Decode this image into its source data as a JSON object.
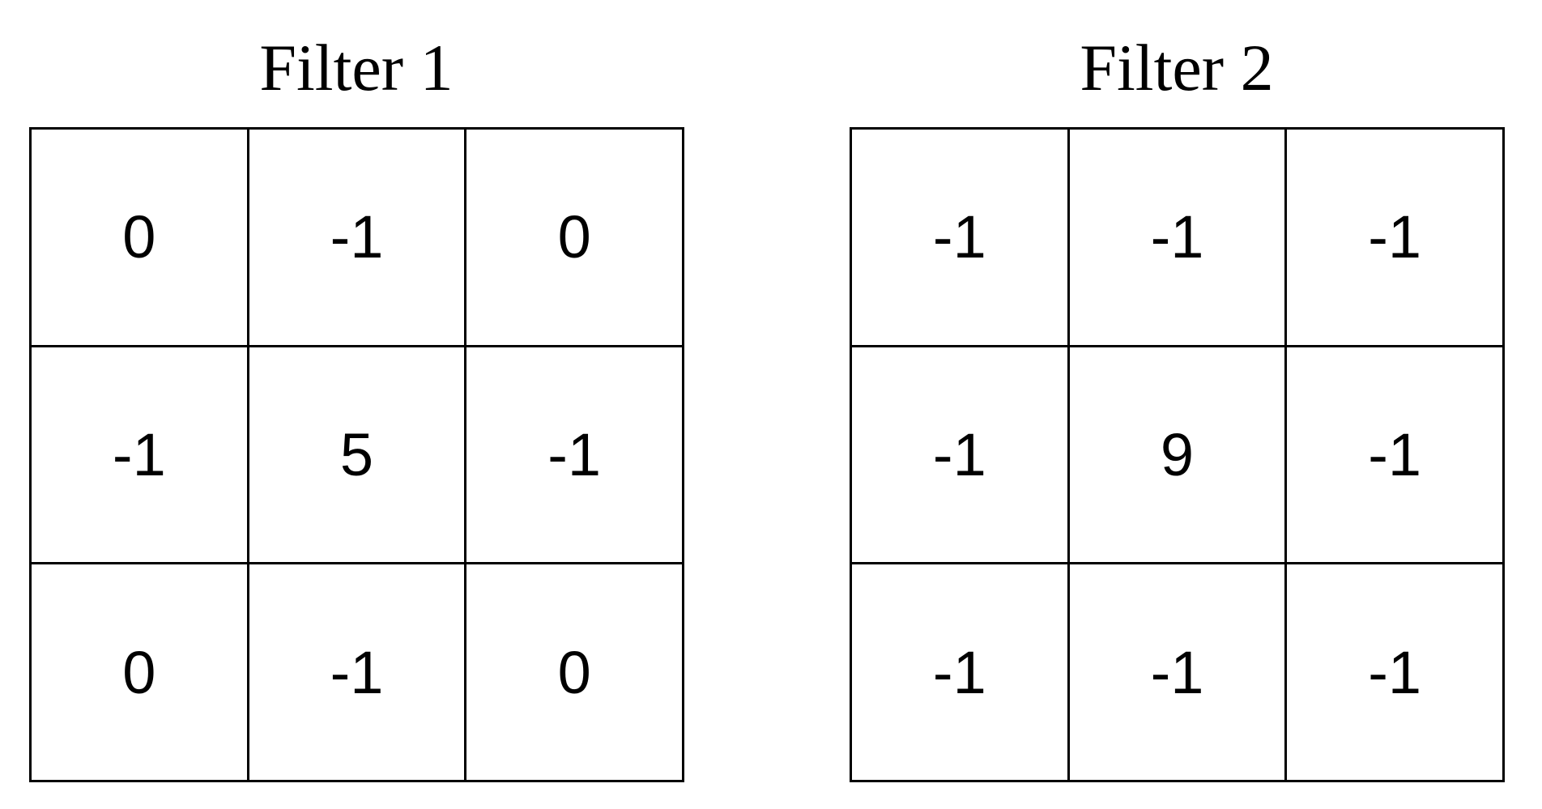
{
  "filters": [
    {
      "title": "Filter 1",
      "cells": [
        [
          "0",
          "-1",
          "0"
        ],
        [
          "-1",
          "5",
          "-1"
        ],
        [
          "0",
          "-1",
          "0"
        ]
      ]
    },
    {
      "title": "Filter 2",
      "cells": [
        [
          "-1",
          "-1",
          "-1"
        ],
        [
          "-1",
          "9",
          "-1"
        ],
        [
          "-1",
          "-1",
          "-1"
        ]
      ]
    }
  ]
}
